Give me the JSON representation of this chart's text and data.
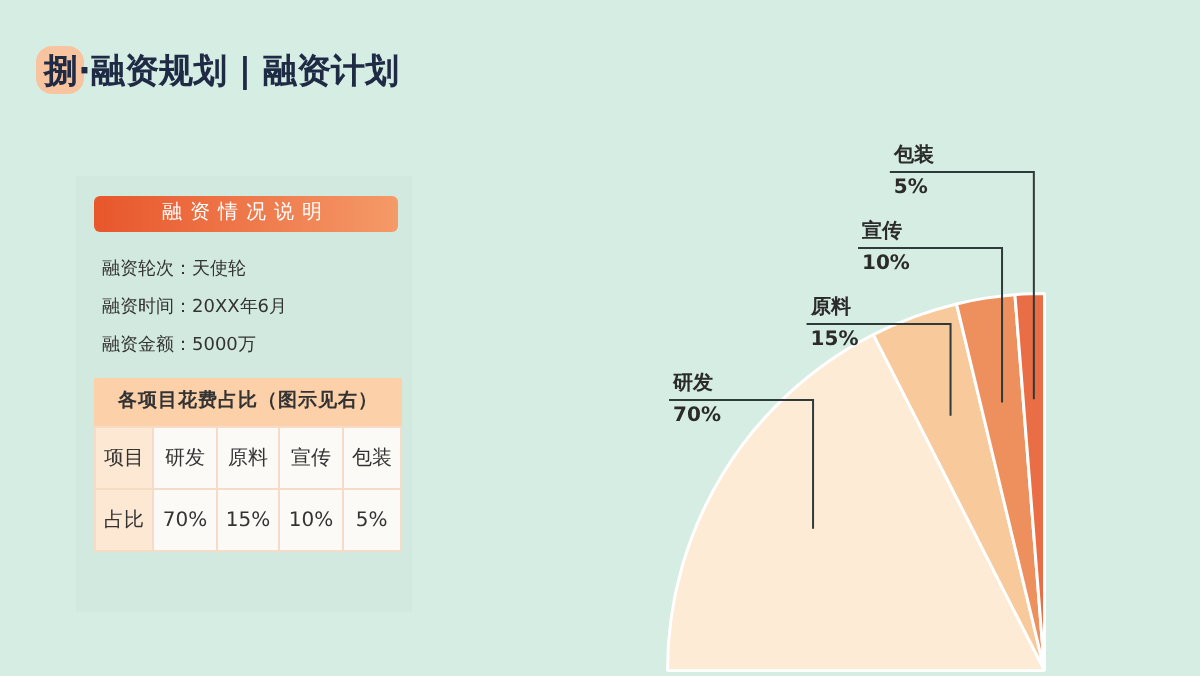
{
  "chart_data": [
    {
      "type": "pie",
      "title": "捌·融资规划 | 融资计划",
      "categories": [
        "研发",
        "原料",
        "宣传",
        "包装"
      ],
      "values": [
        70,
        15,
        10,
        5
      ],
      "colors": [
        "#fdebd6",
        "#f8c99b",
        "#ee8f5e",
        "#ea6e45"
      ],
      "value_labels": [
        "70%",
        "15%",
        "10%",
        "5%"
      ],
      "legend": false
    },
    {
      "type": "other",
      "title": "融资情况说明",
      "annotations": [
        "融资轮次：天使轮",
        "融资时间：20XX年6月",
        "融资金额：5000万",
        "各项目花费占比（图示见右）",
        "项目",
        "占比"
      ],
      "categories": [
        "研发",
        "原料",
        "宣传",
        "包装"
      ],
      "value_labels": [
        "70%",
        "15%",
        "10%",
        "5%"
      ]
    }
  ]
}
